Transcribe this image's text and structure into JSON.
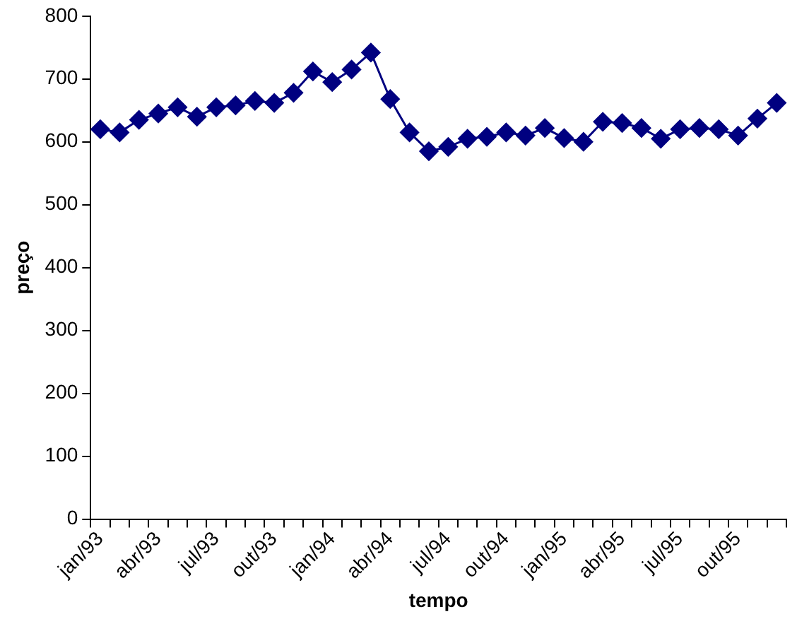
{
  "chart_data": {
    "type": "line",
    "xlabel": "tempo",
    "ylabel": "preço",
    "categories": [
      "jan/93",
      null,
      null,
      "abr/93",
      null,
      null,
      "jul/93",
      null,
      null,
      "out/93",
      null,
      null,
      "jan/94",
      null,
      null,
      "abr/94",
      null,
      null,
      "jul/94",
      null,
      null,
      "out/94",
      null,
      null,
      "jan/95",
      null,
      null,
      "abr/95",
      null,
      null,
      "jul/95",
      null,
      null,
      "out/95",
      null,
      null
    ],
    "series": [
      {
        "color": "#000080",
        "values": [
          620,
          615,
          635,
          645,
          655,
          640,
          655,
          658,
          665,
          662,
          678,
          712,
          695,
          715,
          742,
          668,
          615,
          585,
          592,
          605,
          608,
          615,
          610,
          622,
          606,
          600,
          632,
          630,
          622,
          605,
          620,
          622,
          620,
          610,
          637,
          662
        ]
      }
    ],
    "ylim": [
      0,
      800
    ],
    "yticks": [
      0,
      100,
      200,
      300,
      400,
      500,
      600,
      700,
      800
    ],
    "grid": false,
    "legend": false,
    "marker": "diamond",
    "line_style": "solid"
  }
}
